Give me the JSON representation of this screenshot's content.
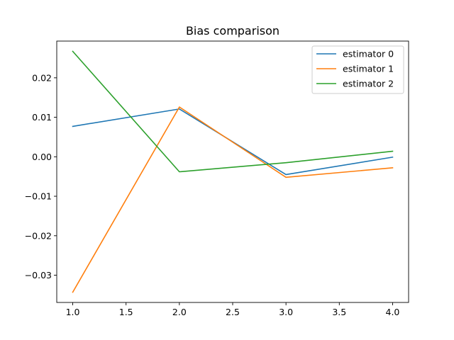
{
  "chart_data": {
    "type": "line",
    "title": "Bias comparison",
    "xlabel": "",
    "ylabel": "",
    "x": [
      1.0,
      2.0,
      3.0,
      4.0
    ],
    "xlim": [
      0.85,
      4.15
    ],
    "ylim": [
      -0.0369,
      0.0293
    ],
    "xticks": [
      1.0,
      1.5,
      2.0,
      2.5,
      3.0,
      3.5,
      4.0
    ],
    "xtick_labels": [
      "1.0",
      "1.5",
      "2.0",
      "2.5",
      "3.0",
      "3.5",
      "4.0"
    ],
    "yticks": [
      -0.03,
      -0.02,
      -0.01,
      0.0,
      0.01,
      0.02
    ],
    "ytick_labels": [
      "−0.03",
      "−0.02",
      "−0.01",
      "0.00",
      "0.01",
      "0.02"
    ],
    "grid": false,
    "legend_position": "top-right",
    "series": [
      {
        "name": "estimator 0",
        "color": "#1f77b4",
        "values": [
          0.0077,
          0.0121,
          -0.0045,
          -0.0001
        ]
      },
      {
        "name": "estimator 1",
        "color": "#ff7f0e",
        "values": [
          -0.0343,
          0.0126,
          -0.0052,
          -0.0028
        ]
      },
      {
        "name": "estimator 2",
        "color": "#2ca02c",
        "values": [
          0.0267,
          -0.0038,
          -0.0015,
          0.0014
        ]
      }
    ]
  }
}
